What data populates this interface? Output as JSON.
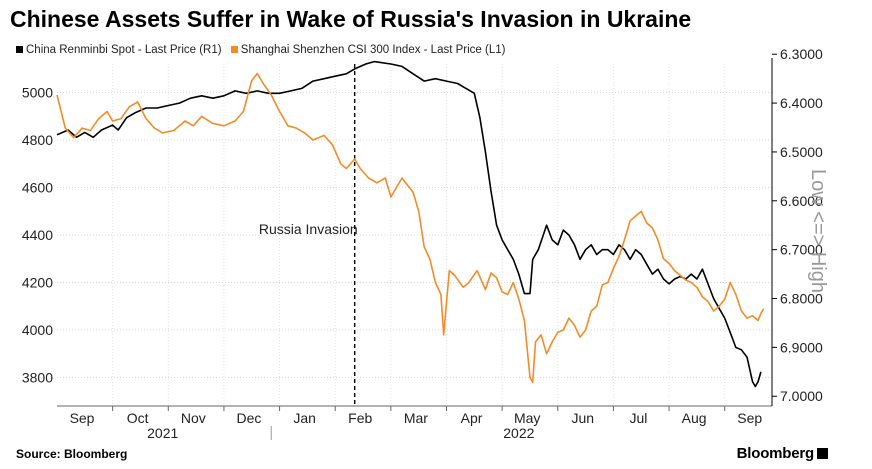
{
  "title": "Chinese Assets Suffer in Wake of Russia's Invasion in Ukraine",
  "legend": [
    {
      "label": "China Renminbi Spot - Last Price (R1)",
      "color": "#000000"
    },
    {
      "label": "Shanghai Shenzhen CSI 300 Index - Last Price (L1)",
      "color": "#f28c28"
    }
  ],
  "footer": {
    "source": "Source: Bloomberg",
    "brand": "Bloomberg"
  },
  "chart_data": {
    "type": "line",
    "title": "Chinese Assets Suffer in Wake of Russia's Invasion in Ukraine",
    "x_range": [
      0,
      12.2
    ],
    "x_ticks": [
      {
        "label": "Sep",
        "x": 0.45
      },
      {
        "label": "Oct",
        "x": 1.45
      },
      {
        "label": "Nov",
        "x": 2.45
      },
      {
        "label": "Dec",
        "x": 3.45
      },
      {
        "label": "Jan",
        "x": 4.45
      },
      {
        "label": "Feb",
        "x": 5.45
      },
      {
        "label": "Mar",
        "x": 6.45
      },
      {
        "label": "Apr",
        "x": 7.45
      },
      {
        "label": "May",
        "x": 8.45
      },
      {
        "label": "Jun",
        "x": 9.45
      },
      {
        "label": "Jul",
        "x": 10.45
      },
      {
        "label": "Aug",
        "x": 11.45
      },
      {
        "label": "Sep",
        "x": 12.45
      }
    ],
    "year_labels": [
      {
        "label": "2021",
        "x": 1.9
      },
      {
        "label": "2022",
        "x": 8.3
      }
    ],
    "year_divider_x": 3.85,
    "left_axis": {
      "range": [
        3680,
        5120
      ],
      "ticks": [
        3800,
        4000,
        4200,
        4400,
        4600,
        4800,
        5000
      ]
    },
    "right_axis": {
      "range": [
        6.32,
        7.02
      ],
      "ticks": [
        "6.3000",
        "6.4000",
        "6.5000",
        "6.6000",
        "6.7000",
        "6.8000",
        "6.9000",
        "7.0000"
      ],
      "inverted": true,
      "label": "Low <=> High"
    },
    "annotation": {
      "label": "Russia Invasion",
      "x": 5.35
    },
    "series": [
      {
        "name": "China Renminbi Spot - Last Price (R1)",
        "axis": "right",
        "color": "#000000",
        "points": [
          [
            0,
            6.465
          ],
          [
            0.2,
            6.455
          ],
          [
            0.35,
            6.47
          ],
          [
            0.5,
            6.46
          ],
          [
            0.65,
            6.47
          ],
          [
            0.8,
            6.455
          ],
          [
            1.0,
            6.445
          ],
          [
            1.1,
            6.455
          ],
          [
            1.25,
            6.43
          ],
          [
            1.4,
            6.42
          ],
          [
            1.6,
            6.41
          ],
          [
            1.8,
            6.41
          ],
          [
            2.0,
            6.405
          ],
          [
            2.2,
            6.4
          ],
          [
            2.4,
            6.39
          ],
          [
            2.6,
            6.385
          ],
          [
            2.8,
            6.39
          ],
          [
            3.0,
            6.385
          ],
          [
            3.2,
            6.375
          ],
          [
            3.4,
            6.38
          ],
          [
            3.6,
            6.375
          ],
          [
            3.8,
            6.38
          ],
          [
            4.0,
            6.38
          ],
          [
            4.2,
            6.375
          ],
          [
            4.4,
            6.37
          ],
          [
            4.6,
            6.355
          ],
          [
            4.8,
            6.35
          ],
          [
            5.0,
            6.345
          ],
          [
            5.2,
            6.34
          ],
          [
            5.35,
            6.33
          ],
          [
            5.55,
            6.32
          ],
          [
            5.7,
            6.315
          ],
          [
            6.0,
            6.32
          ],
          [
            6.2,
            6.325
          ],
          [
            6.4,
            6.34
          ],
          [
            6.6,
            6.355
          ],
          [
            6.8,
            6.35
          ],
          [
            7.0,
            6.355
          ],
          [
            7.2,
            6.36
          ],
          [
            7.35,
            6.37
          ],
          [
            7.5,
            6.38
          ],
          [
            7.6,
            6.43
          ],
          [
            7.7,
            6.5
          ],
          [
            7.8,
            6.58
          ],
          [
            7.9,
            6.65
          ],
          [
            8.0,
            6.68
          ],
          [
            8.1,
            6.7
          ],
          [
            8.2,
            6.72
          ],
          [
            8.3,
            6.75
          ],
          [
            8.4,
            6.79
          ],
          [
            8.5,
            6.79
          ],
          [
            8.55,
            6.72
          ],
          [
            8.65,
            6.7
          ],
          [
            8.8,
            6.65
          ],
          [
            8.9,
            6.68
          ],
          [
            9.0,
            6.69
          ],
          [
            9.1,
            6.66
          ],
          [
            9.2,
            6.67
          ],
          [
            9.3,
            6.69
          ],
          [
            9.4,
            6.72
          ],
          [
            9.5,
            6.7
          ],
          [
            9.6,
            6.69
          ],
          [
            9.7,
            6.71
          ],
          [
            9.8,
            6.7
          ],
          [
            9.9,
            6.7
          ],
          [
            10.0,
            6.71
          ],
          [
            10.1,
            6.69
          ],
          [
            10.2,
            6.7
          ],
          [
            10.3,
            6.72
          ],
          [
            10.4,
            6.7
          ],
          [
            10.5,
            6.71
          ],
          [
            10.6,
            6.73
          ],
          [
            10.7,
            6.75
          ],
          [
            10.8,
            6.74
          ],
          [
            10.9,
            6.76
          ],
          [
            11.0,
            6.77
          ],
          [
            11.1,
            6.76
          ],
          [
            11.2,
            6.755
          ],
          [
            11.3,
            6.76
          ],
          [
            11.4,
            6.75
          ],
          [
            11.5,
            6.76
          ],
          [
            11.6,
            6.74
          ],
          [
            11.7,
            6.77
          ],
          [
            11.8,
            6.8
          ],
          [
            11.9,
            6.82
          ],
          [
            12.0,
            6.84
          ],
          [
            12.1,
            6.87
          ],
          [
            12.2,
            6.9
          ],
          [
            12.3,
            6.905
          ],
          [
            12.4,
            6.92
          ],
          [
            12.5,
            6.97
          ],
          [
            12.55,
            6.98
          ],
          [
            12.6,
            6.97
          ],
          [
            12.65,
            6.95
          ]
        ]
      },
      {
        "name": "Shanghai Shenzhen CSI 300 Index - Last Price (L1)",
        "axis": "left",
        "color": "#f28c28",
        "points": [
          [
            0,
            4990
          ],
          [
            0.15,
            4850
          ],
          [
            0.3,
            4810
          ],
          [
            0.45,
            4850
          ],
          [
            0.6,
            4840
          ],
          [
            0.75,
            4890
          ],
          [
            0.9,
            4920
          ],
          [
            1.0,
            4880
          ],
          [
            1.15,
            4890
          ],
          [
            1.3,
            4940
          ],
          [
            1.45,
            4960
          ],
          [
            1.6,
            4890
          ],
          [
            1.75,
            4850
          ],
          [
            1.9,
            4830
          ],
          [
            2.1,
            4840
          ],
          [
            2.3,
            4880
          ],
          [
            2.45,
            4860
          ],
          [
            2.6,
            4900
          ],
          [
            2.8,
            4870
          ],
          [
            3.0,
            4860
          ],
          [
            3.2,
            4880
          ],
          [
            3.35,
            4920
          ],
          [
            3.5,
            5050
          ],
          [
            3.6,
            5080
          ],
          [
            3.7,
            5040
          ],
          [
            3.85,
            4990
          ],
          [
            4.0,
            4920
          ],
          [
            4.15,
            4860
          ],
          [
            4.3,
            4850
          ],
          [
            4.45,
            4830
          ],
          [
            4.6,
            4800
          ],
          [
            4.8,
            4820
          ],
          [
            4.95,
            4780
          ],
          [
            5.1,
            4700
          ],
          [
            5.2,
            4680
          ],
          [
            5.35,
            4720
          ],
          [
            5.45,
            4680
          ],
          [
            5.6,
            4640
          ],
          [
            5.75,
            4620
          ],
          [
            5.9,
            4640
          ],
          [
            6.0,
            4560
          ],
          [
            6.1,
            4600
          ],
          [
            6.2,
            4640
          ],
          [
            6.3,
            4610
          ],
          [
            6.4,
            4580
          ],
          [
            6.5,
            4500
          ],
          [
            6.6,
            4350
          ],
          [
            6.7,
            4300
          ],
          [
            6.8,
            4200
          ],
          [
            6.9,
            4150
          ],
          [
            6.95,
            3980
          ],
          [
            7.05,
            4250
          ],
          [
            7.15,
            4230
          ],
          [
            7.3,
            4180
          ],
          [
            7.4,
            4200
          ],
          [
            7.55,
            4250
          ],
          [
            7.7,
            4170
          ],
          [
            7.8,
            4240
          ],
          [
            7.9,
            4220
          ],
          [
            8.0,
            4160
          ],
          [
            8.1,
            4150
          ],
          [
            8.2,
            4200
          ],
          [
            8.3,
            4130
          ],
          [
            8.4,
            4040
          ],
          [
            8.5,
            3800
          ],
          [
            8.55,
            3780
          ],
          [
            8.6,
            3950
          ],
          [
            8.7,
            3980
          ],
          [
            8.8,
            3900
          ],
          [
            8.9,
            3950
          ],
          [
            9.0,
            3990
          ],
          [
            9.1,
            4000
          ],
          [
            9.2,
            4050
          ],
          [
            9.3,
            4020
          ],
          [
            9.4,
            3970
          ],
          [
            9.5,
            4000
          ],
          [
            9.6,
            4080
          ],
          [
            9.7,
            4100
          ],
          [
            9.8,
            4190
          ],
          [
            9.9,
            4200
          ],
          [
            10.0,
            4260
          ],
          [
            10.1,
            4310
          ],
          [
            10.2,
            4380
          ],
          [
            10.3,
            4460
          ],
          [
            10.4,
            4480
          ],
          [
            10.5,
            4500
          ],
          [
            10.6,
            4450
          ],
          [
            10.7,
            4430
          ],
          [
            10.8,
            4380
          ],
          [
            10.9,
            4300
          ],
          [
            11.0,
            4280
          ],
          [
            11.1,
            4250
          ],
          [
            11.2,
            4230
          ],
          [
            11.3,
            4210
          ],
          [
            11.4,
            4200
          ],
          [
            11.5,
            4180
          ],
          [
            11.6,
            4140
          ],
          [
            11.7,
            4120
          ],
          [
            11.8,
            4080
          ],
          [
            11.9,
            4100
          ],
          [
            12.0,
            4130
          ],
          [
            12.1,
            4200
          ],
          [
            12.2,
            4150
          ],
          [
            12.3,
            4080
          ],
          [
            12.4,
            4050
          ],
          [
            12.5,
            4060
          ],
          [
            12.6,
            4040
          ],
          [
            12.65,
            4070
          ],
          [
            12.7,
            4090
          ]
        ]
      }
    ]
  }
}
